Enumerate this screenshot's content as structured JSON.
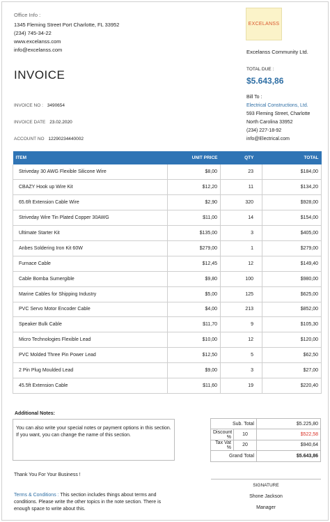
{
  "office": {
    "title": "Office Info :",
    "lines": [
      "1345 Fleming Street Port Charlotte, FL 33952",
      "(234) 745-34-22",
      "www.excelanss.com",
      "info@excelanss.com"
    ]
  },
  "logo": {
    "text": "EXCELANSS"
  },
  "company_name": "Excelanss Community Ltd.",
  "invoice_title": "INVOICE",
  "total_due": {
    "label": "TOTAL DUE :",
    "value": "$5.643,86"
  },
  "meta": {
    "invoice_no_label": "INVOICE NO :",
    "invoice_no": "3490654",
    "invoice_date_label": "INVOICE DATE",
    "invoice_date": "23.02.2020",
    "account_no_label": "ACCOUNT NO",
    "account_no": "12290234440002"
  },
  "bill_to": {
    "label": "Bill To :",
    "name": "Electrical Constructions, Ltd.",
    "lines": [
      "593 Fleming Street, Charlotte",
      "North Carolina 33952",
      "(234) 227-18-92",
      "info@Electrical.com"
    ]
  },
  "table": {
    "headers": {
      "item": "ITEM",
      "unit_price": "UNIT PRICE",
      "qty": "QTY",
      "total": "TOTAL"
    },
    "rows": [
      {
        "item": "Striveday 30 AWG Flexible Silicone Wire",
        "price": "$8,00",
        "qty": "23",
        "total": "$184,00"
      },
      {
        "item": "CBAZY Hook up Wire Kit",
        "price": "$12,20",
        "qty": "11",
        "total": "$134,20"
      },
      {
        "item": "65.6ft Extension Cable Wire",
        "price": "$2,90",
        "qty": "320",
        "total": "$928,00"
      },
      {
        "item": "Striveday Wire Tin Plated Copper 30AWG",
        "price": "$11,00",
        "qty": "14",
        "total": "$154,00"
      },
      {
        "item": "Ultimate Starter Kit",
        "price": "$135,00",
        "qty": "3",
        "total": "$405,00"
      },
      {
        "item": "Anbes Soldering Iron Kit 60W",
        "price": "$279,00",
        "qty": "1",
        "total": "$279,00"
      },
      {
        "item": "Furnace Cable",
        "price": "$12,45",
        "qty": "12",
        "total": "$149,40"
      },
      {
        "item": "Cable Bomba Sumergible",
        "price": "$9,80",
        "qty": "100",
        "total": "$980,00"
      },
      {
        "item": "Marine Cables for Shipping Industry",
        "price": "$5,00",
        "qty": "125",
        "total": "$625,00"
      },
      {
        "item": "PVC Servo Motor Encoder Cable",
        "price": "$4,00",
        "qty": "213",
        "total": "$852,00"
      },
      {
        "item": "Speaker Bulk Cable",
        "price": "$11,70",
        "qty": "9",
        "total": "$105,30"
      },
      {
        "item": "Micro Technologies Flexible Lead",
        "price": "$10,00",
        "qty": "12",
        "total": "$120,00"
      },
      {
        "item": "PVC Molded Three Pin Power Lead",
        "price": "$12,50",
        "qty": "5",
        "total": "$62,50"
      },
      {
        "item": "2 Pin Plug Moulded Lead",
        "price": "$9,00",
        "qty": "3",
        "total": "$27,00"
      },
      {
        "item": "45.5ft Extension Cable",
        "price": "$11,60",
        "qty": "19",
        "total": "$220,40"
      }
    ]
  },
  "notes": {
    "title": "Additional Notes:",
    "text": "You can also write your special notes or payment options in this section. If you want, you can change the name of this section."
  },
  "summary": {
    "sub_total_label": "Sub. Total",
    "sub_total": "$5.225,80",
    "discount_label": "Discount %",
    "discount_pct": "10",
    "discount": "$522,58",
    "tax_label": "Tax Vat %",
    "tax_pct": "20",
    "tax": "$940,64",
    "grand_label": "Grand Total",
    "grand": "$5.643,86"
  },
  "thanks": "Thank You For Your Business !",
  "terms": {
    "label": "Terms & Conditions :",
    "text": "This section includes things about terms and conditions. Please write the other topics in the note section. There is enough space to write about this."
  },
  "signature": {
    "label": "SIGNATURE",
    "name": "Shone Jackson",
    "title": "Manager"
  },
  "colors": {
    "accent": "#2f74b5",
    "discount": "#d93025",
    "logo_bg": "#fbf3c9",
    "logo_text": "#d9552b"
  }
}
